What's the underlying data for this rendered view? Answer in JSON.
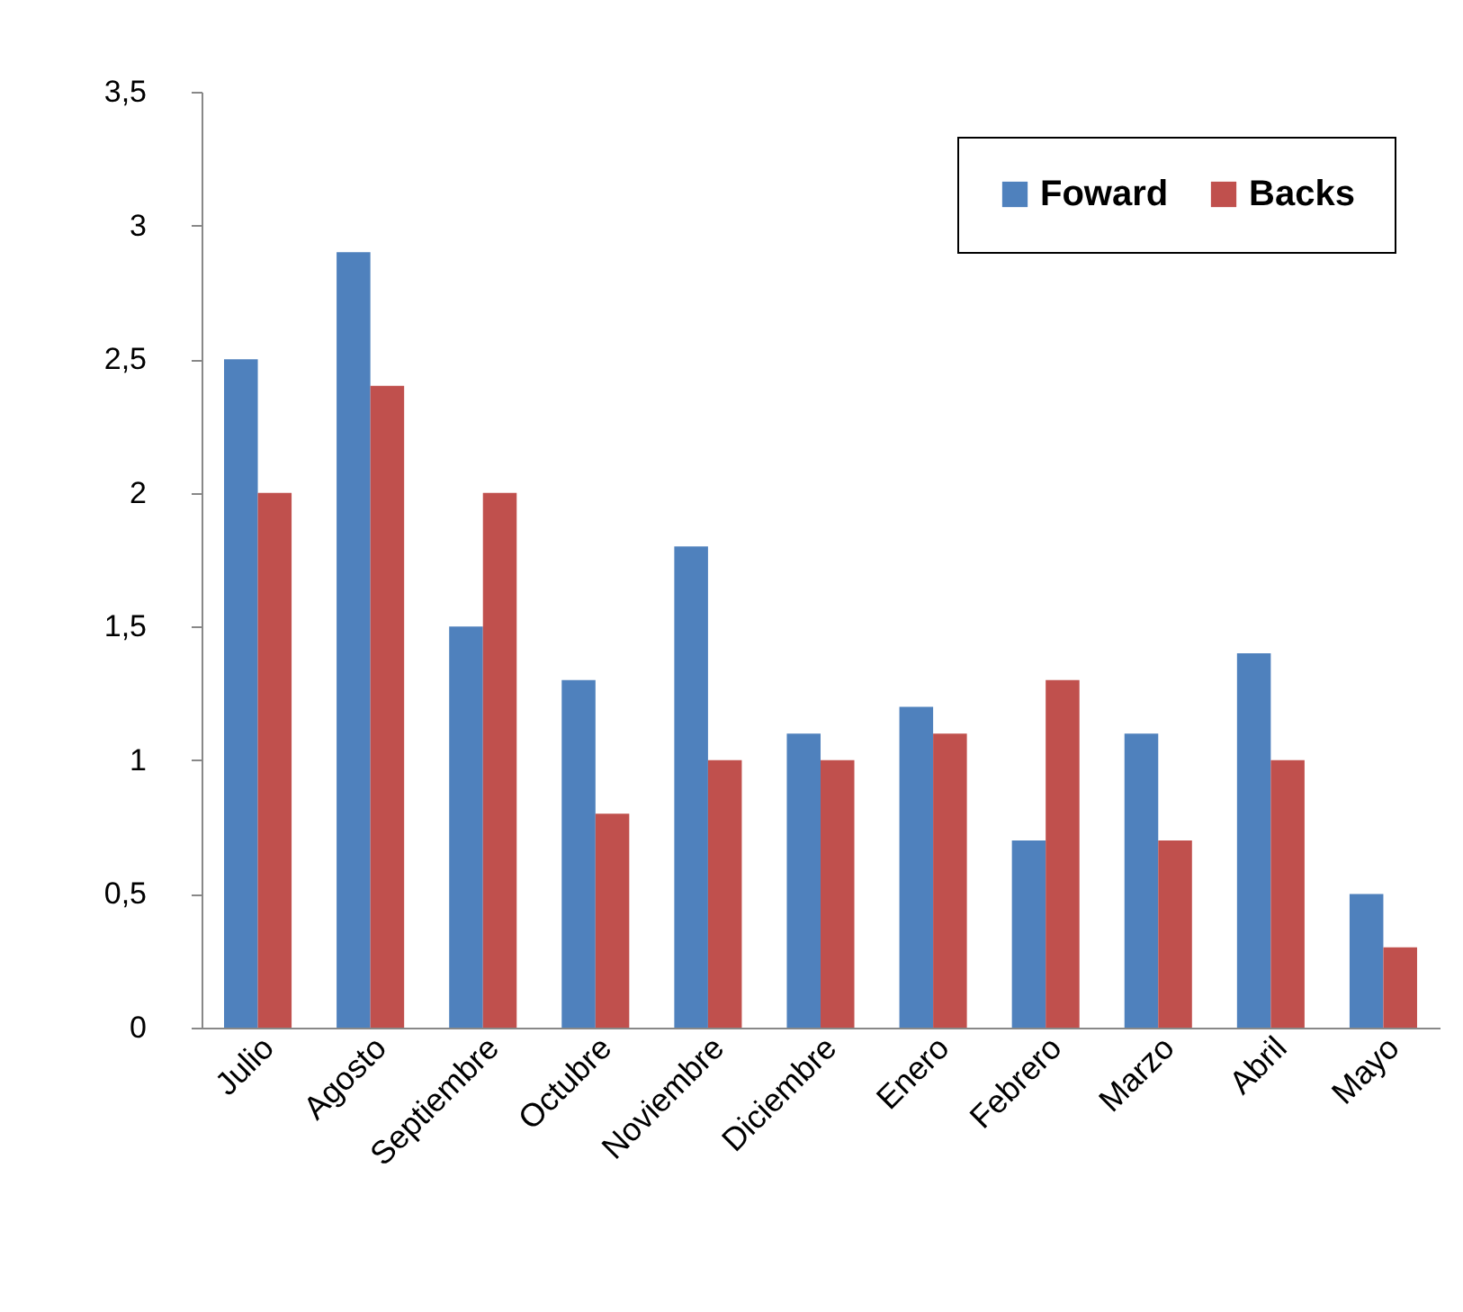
{
  "chart_data": {
    "type": "bar",
    "categories": [
      "Julio",
      "Agosto",
      "Septiembre",
      "Octubre",
      "Noviembre",
      "Diciembre",
      "Enero",
      "Febrero",
      "Marzo",
      "Abril",
      "Mayo"
    ],
    "series": [
      {
        "name": "Foward",
        "color": "#4f81bd",
        "values": [
          2.5,
          2.9,
          1.5,
          1.3,
          1.8,
          1.1,
          1.2,
          0.7,
          1.1,
          1.4,
          0.5
        ]
      },
      {
        "name": "Backs",
        "color": "#c0504d",
        "values": [
          2.0,
          2.4,
          2.0,
          0.8,
          1.0,
          1.0,
          1.1,
          1.3,
          0.7,
          1.0,
          0.3
        ]
      }
    ],
    "ylim": [
      0,
      3.5
    ],
    "yticks": [
      0,
      {
        "value": 0.5,
        "label": "0,5"
      },
      1,
      {
        "value": 1.5,
        "label": "1,5"
      },
      2,
      {
        "value": 2.5,
        "label": "2,5"
      },
      3,
      {
        "value": 3.5,
        "label": "3,5"
      }
    ],
    "grid": false,
    "legend": "top right"
  }
}
